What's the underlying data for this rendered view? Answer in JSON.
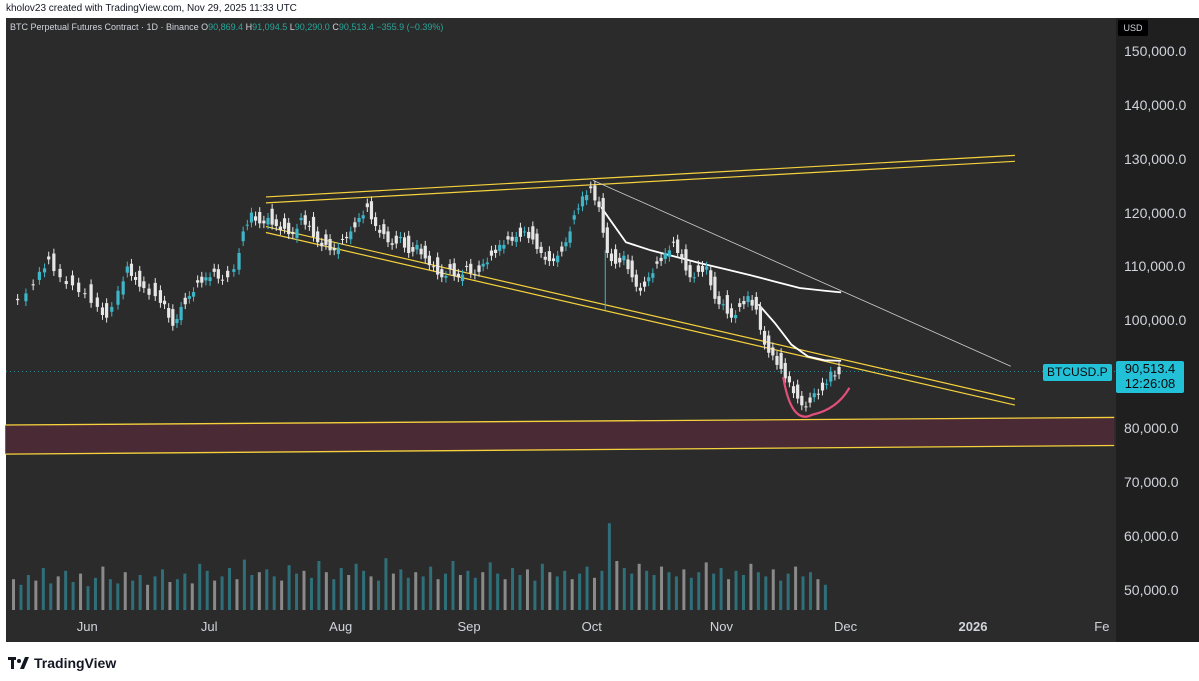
{
  "header": {
    "text": "kholov23 created with TradingView.com, Nov 29, 2025 11:33 UTC"
  },
  "legend": {
    "title": "BTC Perpetual Futures Contract · 1D · Binance",
    "o_label": "O",
    "o": "90,869.4",
    "h_label": "H",
    "h": "91,094.5",
    "l_label": "L",
    "l": "90,290.0",
    "c_label": "C",
    "c": "90,513.4",
    "change": "−355.9 (−0.39%)"
  },
  "currency": "USD",
  "symbol": "BTCUSD.P",
  "last_price": "90,513.4",
  "countdown": "12:26:08",
  "footer": {
    "brand": "TradingView"
  },
  "colors": {
    "background": "#2b2b2b",
    "up": "#3fb6c8",
    "down": "#e6e6e6",
    "channel": "#f5d23d",
    "zone_fill": "#4a2a35",
    "cup": "#e0507a",
    "accent": "#22c1d8"
  },
  "chart_data": {
    "type": "candlestick",
    "y_ticks": [
      "150,000.0",
      "140,000.0",
      "130,000.0",
      "120,000.0",
      "110,000.0",
      "100,000.0",
      "80,000.0",
      "70,000.0",
      "60,000.0",
      "50,000.0"
    ],
    "y_tick_values": [
      150000,
      140000,
      130000,
      120000,
      110000,
      100000,
      80000,
      70000,
      60000,
      50000
    ],
    "x_ticks": [
      {
        "label": "Jun",
        "day": 0
      },
      {
        "label": "Jul",
        "day": 30
      },
      {
        "label": "Aug",
        "day": 61
      },
      {
        "label": "Sep",
        "day": 92
      },
      {
        "label": "Oct",
        "day": 122
      },
      {
        "label": "Nov",
        "day": 153
      },
      {
        "label": "Dec",
        "day": 183
      },
      {
        "label": "2026",
        "day": 214
      },
      {
        "label": "Fe",
        "day": 245
      }
    ],
    "ylim": [
      45000,
      157000
    ],
    "price_path": [
      [
        -18,
        104000
      ],
      [
        -14,
        105500
      ],
      [
        -11,
        109500
      ],
      [
        -9,
        111800
      ],
      [
        -6,
        108500
      ],
      [
        -3,
        107000
      ],
      [
        0,
        105500
      ],
      [
        3,
        103000
      ],
      [
        5,
        101000
      ],
      [
        8,
        106000
      ],
      [
        10,
        110500
      ],
      [
        12,
        108000
      ],
      [
        14,
        106500
      ],
      [
        17,
        105000
      ],
      [
        19,
        103500
      ],
      [
        21,
        99500
      ],
      [
        23,
        103000
      ],
      [
        25,
        105000
      ],
      [
        27,
        107500
      ],
      [
        29,
        108500
      ],
      [
        31,
        109500
      ],
      [
        33,
        108000
      ],
      [
        36,
        110000
      ],
      [
        38,
        117000
      ],
      [
        40,
        120500
      ],
      [
        42,
        118500
      ],
      [
        44,
        119500
      ],
      [
        46,
        118000
      ],
      [
        48,
        117500
      ],
      [
        50,
        116500
      ],
      [
        52,
        119500
      ],
      [
        54,
        118000
      ],
      [
        56,
        115000
      ],
      [
        58,
        114500
      ],
      [
        60,
        113500
      ],
      [
        62,
        115500
      ],
      [
        64,
        117000
      ],
      [
        66,
        119500
      ],
      [
        68,
        121500
      ],
      [
        70,
        118000
      ],
      [
        72,
        116500
      ],
      [
        74,
        114500
      ],
      [
        76,
        116000
      ],
      [
        78,
        113000
      ],
      [
        80,
        114500
      ],
      [
        82,
        112000
      ],
      [
        84,
        110500
      ],
      [
        86,
        108500
      ],
      [
        88,
        110000
      ],
      [
        90,
        108500
      ],
      [
        92,
        110500
      ],
      [
        94,
        109000
      ],
      [
        96,
        111000
      ],
      [
        98,
        112500
      ],
      [
        100,
        114500
      ],
      [
        102,
        115500
      ],
      [
        104,
        116000
      ],
      [
        106,
        117000
      ],
      [
        108,
        115500
      ],
      [
        110,
        113000
      ],
      [
        112,
        111500
      ],
      [
        114,
        112500
      ],
      [
        116,
        115000
      ],
      [
        118,
        120000
      ],
      [
        120,
        123500
      ],
      [
        122,
        125000
      ],
      [
        124,
        121500
      ],
      [
        126,
        113000
      ],
      [
        128,
        111000
      ],
      [
        130,
        112500
      ],
      [
        132,
        108500
      ],
      [
        134,
        106000
      ],
      [
        136,
        108500
      ],
      [
        138,
        111000
      ],
      [
        140,
        113000
      ],
      [
        142,
        115000
      ],
      [
        144,
        112000
      ],
      [
        146,
        108500
      ],
      [
        148,
        109500
      ],
      [
        150,
        110500
      ],
      [
        152,
        104500
      ],
      [
        154,
        103500
      ],
      [
        156,
        101000
      ],
      [
        158,
        103000
      ],
      [
        160,
        105000
      ],
      [
        162,
        102500
      ],
      [
        164,
        96000
      ],
      [
        166,
        94000
      ],
      [
        168,
        91500
      ],
      [
        170,
        89000
      ],
      [
        172,
        86000
      ],
      [
        174,
        84500
      ],
      [
        176,
        87000
      ],
      [
        178,
        87500
      ],
      [
        180,
        91000
      ],
      [
        182,
        90513
      ]
    ],
    "volume": [
      22,
      18,
      25,
      21,
      30,
      19,
      24,
      28,
      20,
      26,
      17,
      23,
      31,
      22,
      19,
      27,
      21,
      25,
      18,
      24,
      29,
      20,
      22,
      26,
      19,
      33,
      28,
      21,
      24,
      30,
      22,
      36,
      25,
      27,
      29,
      24,
      21,
      32,
      26,
      28,
      23,
      35,
      27,
      22,
      30,
      25,
      33,
      28,
      24,
      21,
      37,
      26,
      29,
      23,
      27,
      24,
      31,
      22,
      26,
      35,
      25,
      28,
      23,
      27,
      34,
      26,
      22,
      30,
      25,
      29,
      21,
      33,
      27,
      24,
      28,
      22,
      26,
      31,
      23,
      28,
      62,
      35,
      30,
      26,
      33,
      28,
      25,
      31,
      27,
      24,
      29,
      23,
      27,
      34,
      26,
      30,
      22,
      28,
      25,
      33,
      27,
      24,
      29,
      21,
      26,
      31,
      24,
      27,
      22,
      18
    ]
  }
}
